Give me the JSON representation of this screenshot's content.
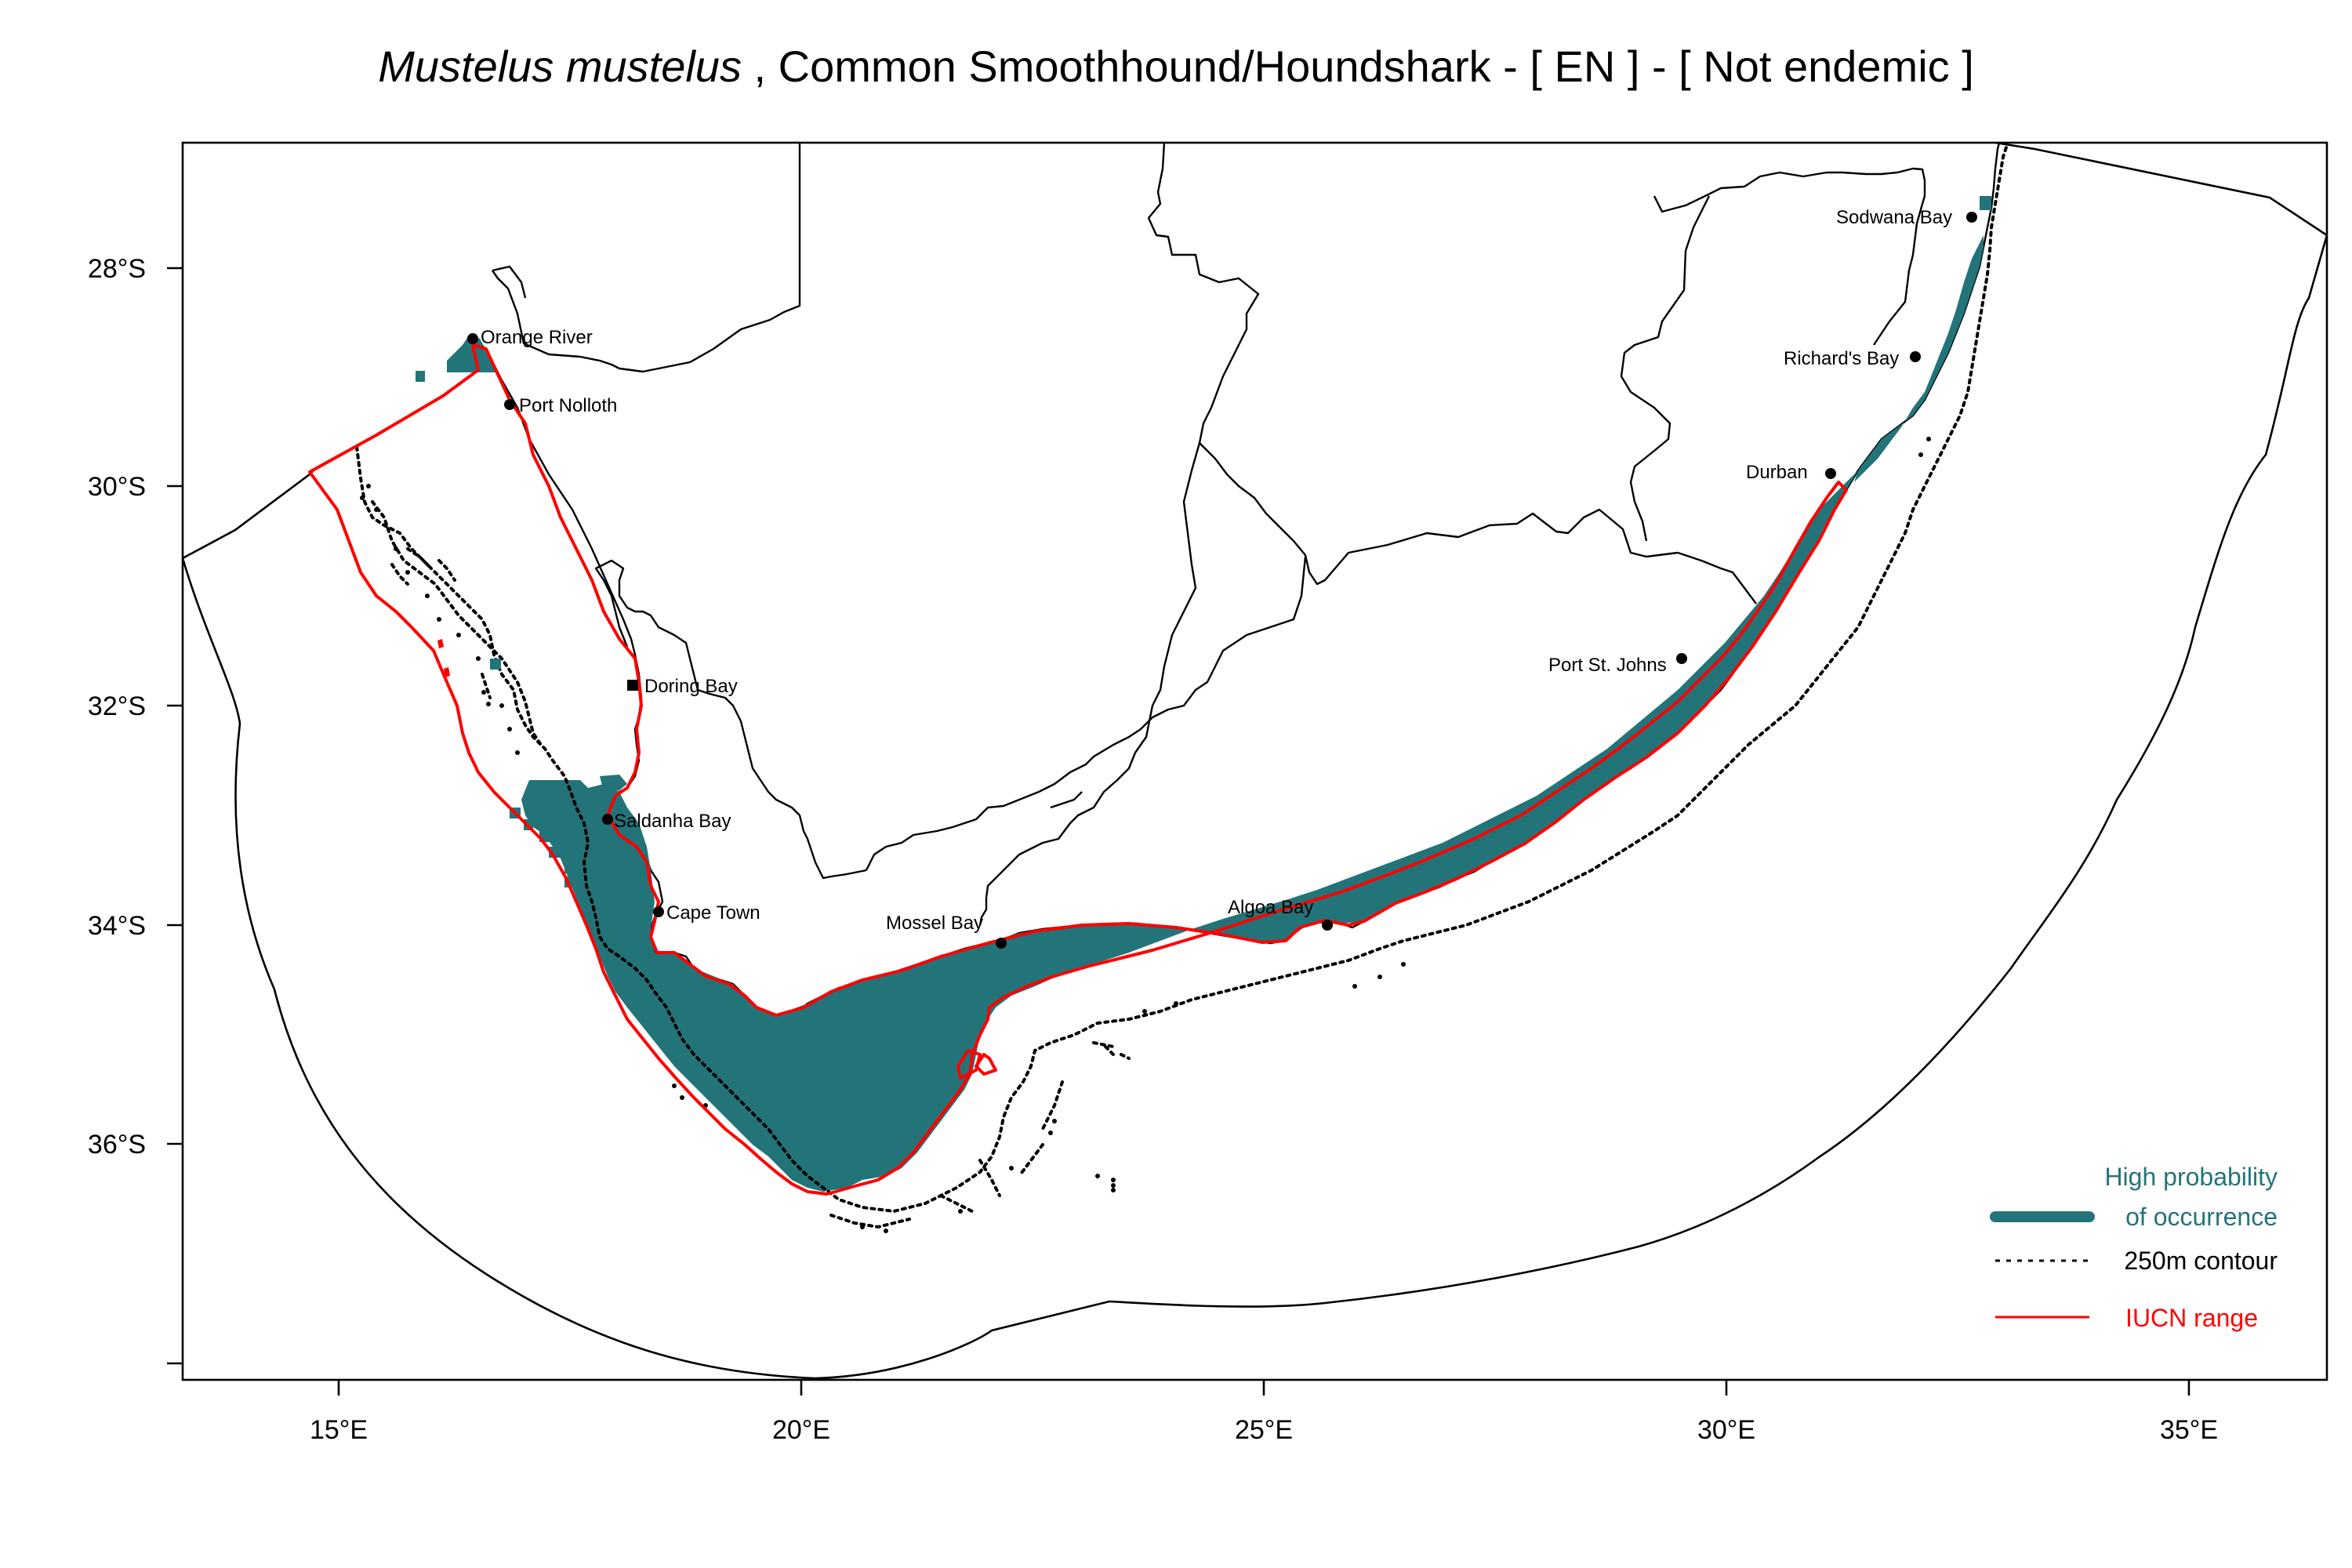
{
  "title": {
    "species": "Mustelus mustelus",
    "rest": " , Common Smoothhound/Houndshark  - [ EN ] - [ Not endemic ]"
  },
  "axes": {
    "x_ticks": [
      "15°E",
      "20°E",
      "25°E",
      "30°E",
      "35°E"
    ],
    "y_ticks": [
      "28°S",
      "30°S",
      "32°S",
      "34°S",
      "36°S"
    ]
  },
  "places": [
    {
      "id": "orange-river",
      "name": "Orange River"
    },
    {
      "id": "port-nolloth",
      "name": "Port Nolloth"
    },
    {
      "id": "doring-bay",
      "name": "Doring Bay"
    },
    {
      "id": "saldanha-bay",
      "name": "Saldanha Bay"
    },
    {
      "id": "cape-town",
      "name": "Cape Town"
    },
    {
      "id": "mossel-bay",
      "name": "Mossel Bay"
    },
    {
      "id": "algoa-bay",
      "name": "Algoa Bay"
    },
    {
      "id": "port-st-johns",
      "name": "Port St. Johns"
    },
    {
      "id": "durban",
      "name": "Durban"
    },
    {
      "id": "richards-bay",
      "name": "Richard's Bay"
    },
    {
      "id": "sodwana-bay",
      "name": "Sodwana Bay"
    }
  ],
  "legend": {
    "occurrence_line1": "High probability",
    "occurrence_line2": "of occurrence",
    "contour": "250m contour",
    "iucn": "IUCN range"
  },
  "colors": {
    "occurrence": "#237479",
    "iucn": "#ff0000",
    "contour": "#000000",
    "boundaries": "#000000"
  }
}
